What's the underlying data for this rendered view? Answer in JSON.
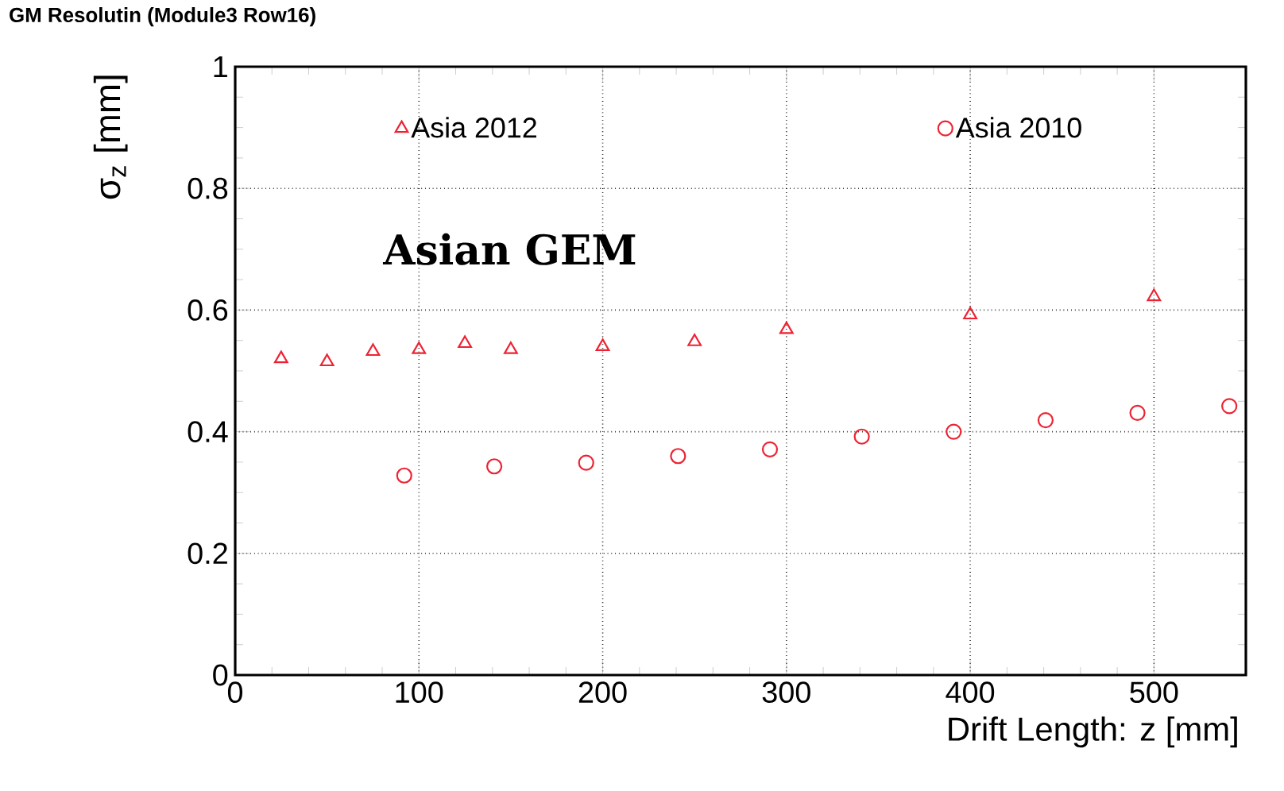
{
  "chart_data": {
    "type": "scatter",
    "title": "GM Resolutin (Module3 Row16)",
    "xlabel": "Drift Length: z [mm]",
    "ylabel": "σ$_{z}$ [mm]",
    "annotations": [
      "**Asian GEM**"
    ],
    "xlim": [
      0,
      550
    ],
    "ylim": [
      0,
      1
    ],
    "xticks": [
      0,
      100,
      200,
      300,
      400,
      500
    ],
    "yticks": [
      0,
      0.2,
      0.4,
      0.6,
      0.8,
      1
    ],
    "grid": true,
    "legend": "top",
    "line_style": "dotted",
    "series": [
      {
        "name": "Asia 2012",
        "color": "#ee2233",
        "marker": "triangle",
        "x": [
          25,
          50,
          75,
          100,
          125,
          150,
          200,
          250,
          300,
          400,
          500
        ],
        "values": [
          0.52,
          0.515,
          0.532,
          0.535,
          0.545,
          0.535,
          0.54,
          0.548,
          0.568,
          0.592,
          0.622
        ]
      },
      {
        "name": "Asia 2010",
        "color": "#ee2233",
        "marker": "circle",
        "x": [
          92,
          141,
          191,
          241,
          291,
          341,
          391,
          441,
          491,
          541
        ],
        "values": [
          0.328,
          0.343,
          0.349,
          0.36,
          0.371,
          0.392,
          0.4,
          0.419,
          0.431,
          0.442
        ]
      }
    ]
  }
}
